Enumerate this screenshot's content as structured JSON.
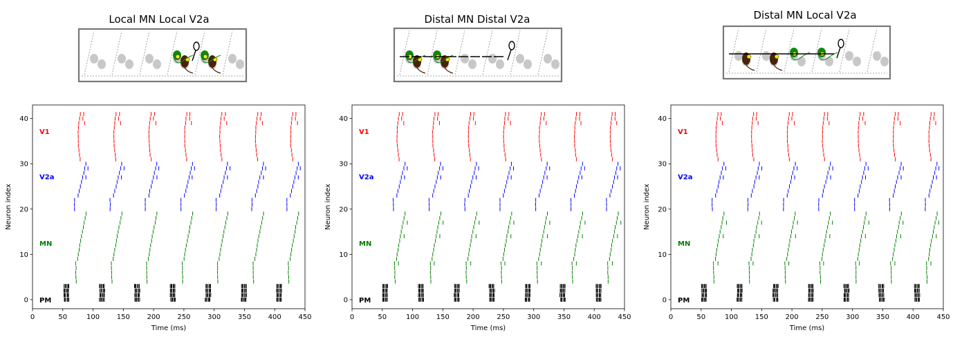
{
  "chart_data": [
    {
      "type": "scatter",
      "subtype": "raster",
      "title": "Local MN Local V2a",
      "xlabel": "Time (ms)",
      "ylabel": "Neuron index",
      "xlim": [
        0,
        450
      ],
      "ylim": [
        -2,
        43
      ],
      "xticks": [
        0,
        50,
        100,
        150,
        200,
        250,
        300,
        350,
        400,
        450
      ],
      "yticks": [
        0,
        10,
        20,
        30,
        40
      ],
      "populations": [
        {
          "name": "PM",
          "color": "#000000"
        },
        {
          "name": "MN",
          "color": "#008000"
        },
        {
          "name": "V2a",
          "color": "#0000ff"
        },
        {
          "name": "V1",
          "color": "#ff0000"
        }
      ],
      "cycle_onsets_ms": [
        51,
        110,
        168,
        227,
        285,
        344,
        402
      ],
      "pattern": "local"
    },
    {
      "type": "scatter",
      "subtype": "raster",
      "title": "Distal MN Distal V2a",
      "xlabel": "Time (ms)",
      "ylabel": "Neuron index",
      "xlim": [
        0,
        450
      ],
      "ylim": [
        -2,
        43
      ],
      "xticks": [
        0,
        50,
        100,
        150,
        200,
        250,
        300,
        350,
        400,
        450
      ],
      "yticks": [
        0,
        10,
        20,
        30,
        40
      ],
      "populations": [
        {
          "name": "PM",
          "color": "#000000"
        },
        {
          "name": "MN",
          "color": "#008000"
        },
        {
          "name": "V2a",
          "color": "#0000ff"
        },
        {
          "name": "V1",
          "color": "#ff0000"
        }
      ],
      "cycle_onsets_ms": [
        50,
        109,
        168,
        226,
        285,
        343,
        402
      ],
      "pattern": "distal"
    },
    {
      "type": "scatter",
      "subtype": "raster",
      "title": "Distal MN Local V2a",
      "xlabel": "Time (ms)",
      "ylabel": "Neuron index",
      "xlim": [
        0,
        450
      ],
      "ylim": [
        -2,
        43
      ],
      "xticks": [
        0,
        50,
        100,
        150,
        200,
        250,
        300,
        350,
        400,
        450
      ],
      "yticks": [
        0,
        10,
        20,
        30,
        40
      ],
      "populations": [
        {
          "name": "PM",
          "color": "#000000"
        },
        {
          "name": "MN",
          "color": "#008000"
        },
        {
          "name": "V2a",
          "color": "#0000ff"
        },
        {
          "name": "V1",
          "color": "#ff0000"
        }
      ],
      "cycle_onsets_ms": [
        50,
        109,
        168,
        226,
        285,
        343,
        402
      ],
      "pattern": "mixed"
    }
  ],
  "colors": {
    "PM": "#000000",
    "MN": "#008000",
    "V2a": "#0000ff",
    "V1": "#ff0000",
    "schematic_body": "#c8c8c8",
    "schematic_green": "#118811",
    "schematic_brown": "#4a2208",
    "schematic_yellow": "#f2ee0e"
  }
}
